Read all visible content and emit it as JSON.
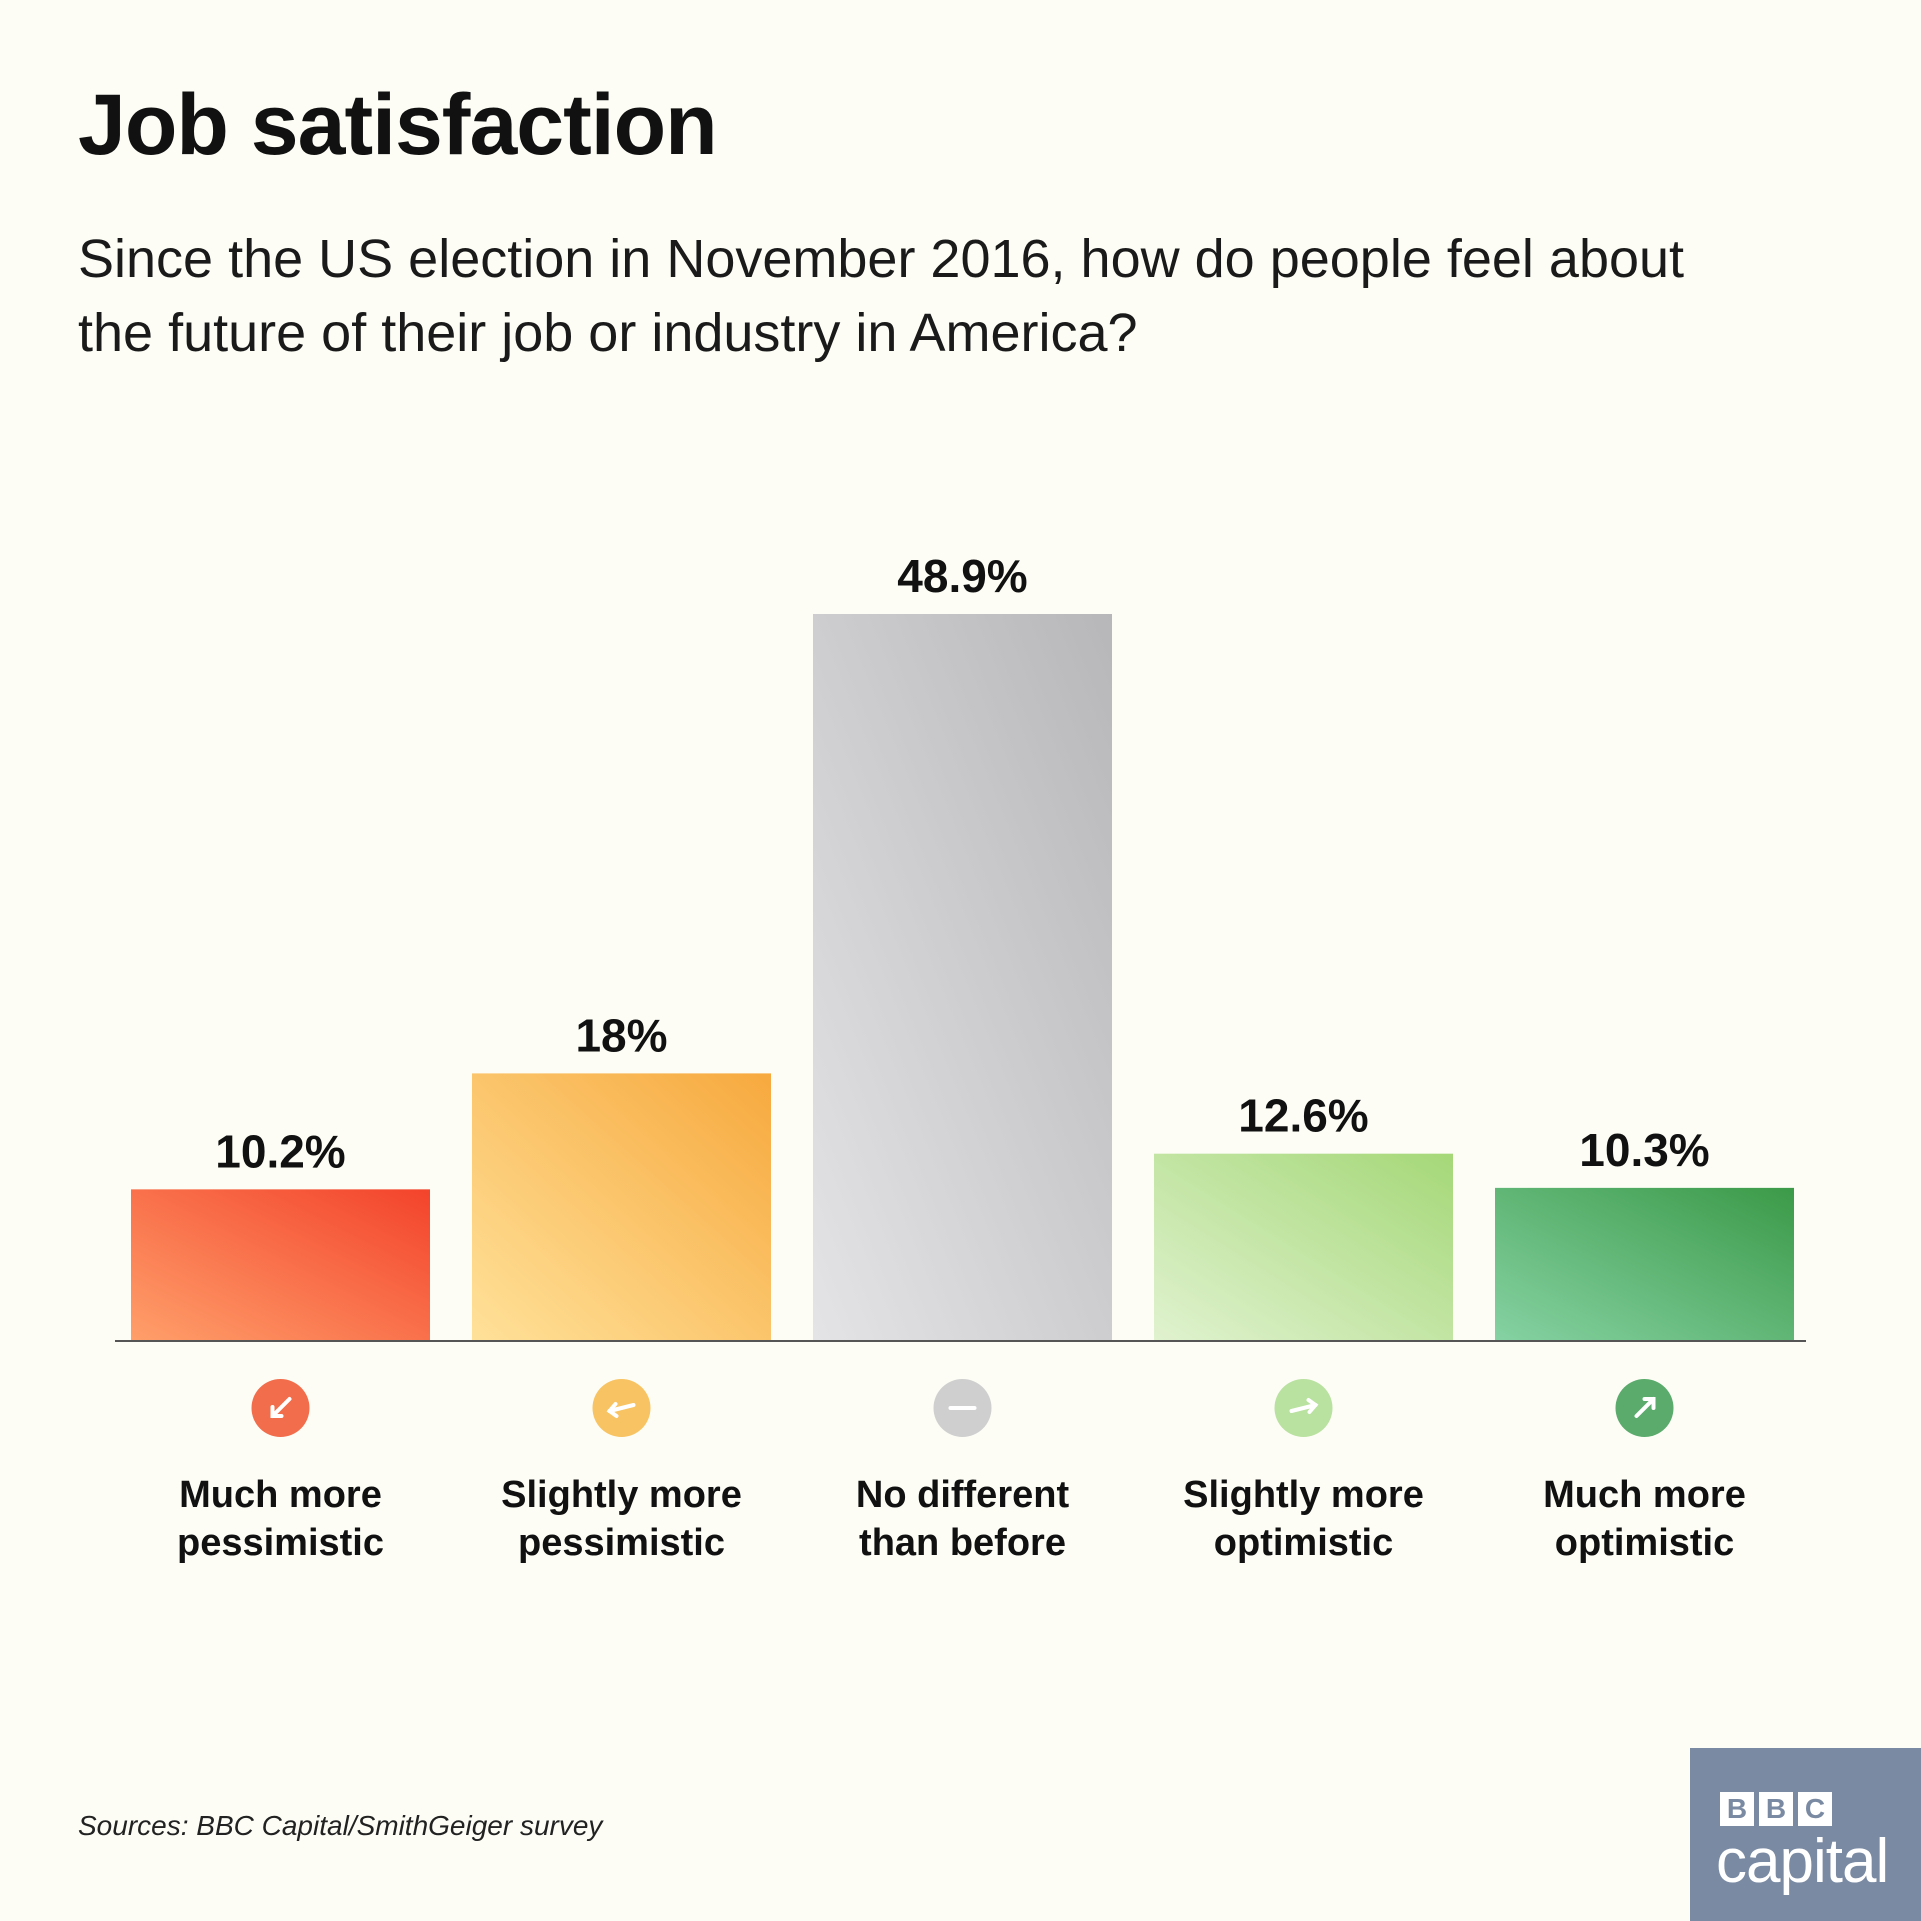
{
  "title": "Job satisfaction",
  "subtitle": "Since the US election in November 2016, how do people feel about the future of their job or industry in America?",
  "source": "Sources: BBC Capital/SmithGeiger survey",
  "logo": {
    "letters": [
      "B",
      "B",
      "C"
    ],
    "word": "capital"
  },
  "chart_data": {
    "type": "bar",
    "title": "Job satisfaction",
    "subtitle": "Since the US election in November 2016, how do people feel about the future of their job or industry in America?",
    "categories": [
      [
        "Much more",
        "pessimistic"
      ],
      [
        "Slightly more",
        "pessimistic"
      ],
      [
        "No different",
        "than before"
      ],
      [
        "Slightly more",
        "optimistic"
      ],
      [
        "Much more",
        "optimistic"
      ]
    ],
    "values": [
      10.2,
      18,
      48.9,
      12.6,
      10.3
    ],
    "value_labels": [
      "10.2%",
      "18%",
      "48.9%",
      "12.6%",
      "10.3%"
    ],
    "unit": "%",
    "ylim": [
      0,
      48.9
    ],
    "grid": false,
    "legend": "none",
    "colors": [
      [
        "#ff9f6a",
        "#f3432b"
      ],
      [
        "#ffe199",
        "#f7a93e"
      ],
      [
        "#e4e4e6",
        "#b7b7b9"
      ],
      [
        "#e0f2cf",
        "#a5d878"
      ],
      [
        "#86d2a3",
        "#3b9a48"
      ]
    ],
    "icon_colors": [
      "#f26d4b",
      "#f8c362",
      "#cfcfcf",
      "#b9e1a0",
      "#5aab6c"
    ],
    "icons": [
      "arrow-down-left-icon",
      "arrow-left-icon",
      "dash-icon",
      "arrow-right-icon",
      "arrow-up-right-icon"
    ]
  }
}
